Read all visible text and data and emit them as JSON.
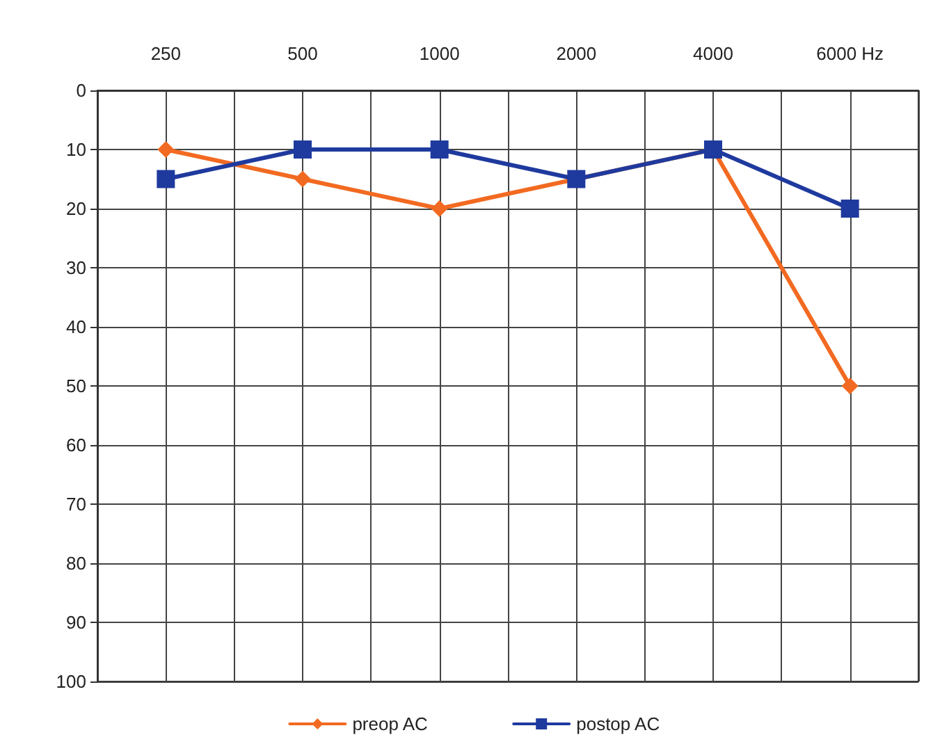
{
  "chart_data": {
    "type": "line",
    "categories": [
      "250",
      "500",
      "1000",
      "2000",
      "4000",
      "6000 Hz"
    ],
    "series": [
      {
        "name": "preop AC",
        "color": "#f26a21",
        "marker": "diamond",
        "values": [
          10,
          15,
          20,
          15,
          10,
          50
        ]
      },
      {
        "name": "postop AC",
        "color": "#1f3a9e",
        "marker": "square",
        "values": [
          15,
          10,
          10,
          15,
          10,
          20
        ]
      }
    ],
    "ylim": [
      100,
      0
    ],
    "yticks": [
      0,
      10,
      20,
      30,
      40,
      50,
      60,
      70,
      80,
      90,
      100
    ],
    "grid": true,
    "legend": "bottom",
    "line_style": "solid"
  }
}
